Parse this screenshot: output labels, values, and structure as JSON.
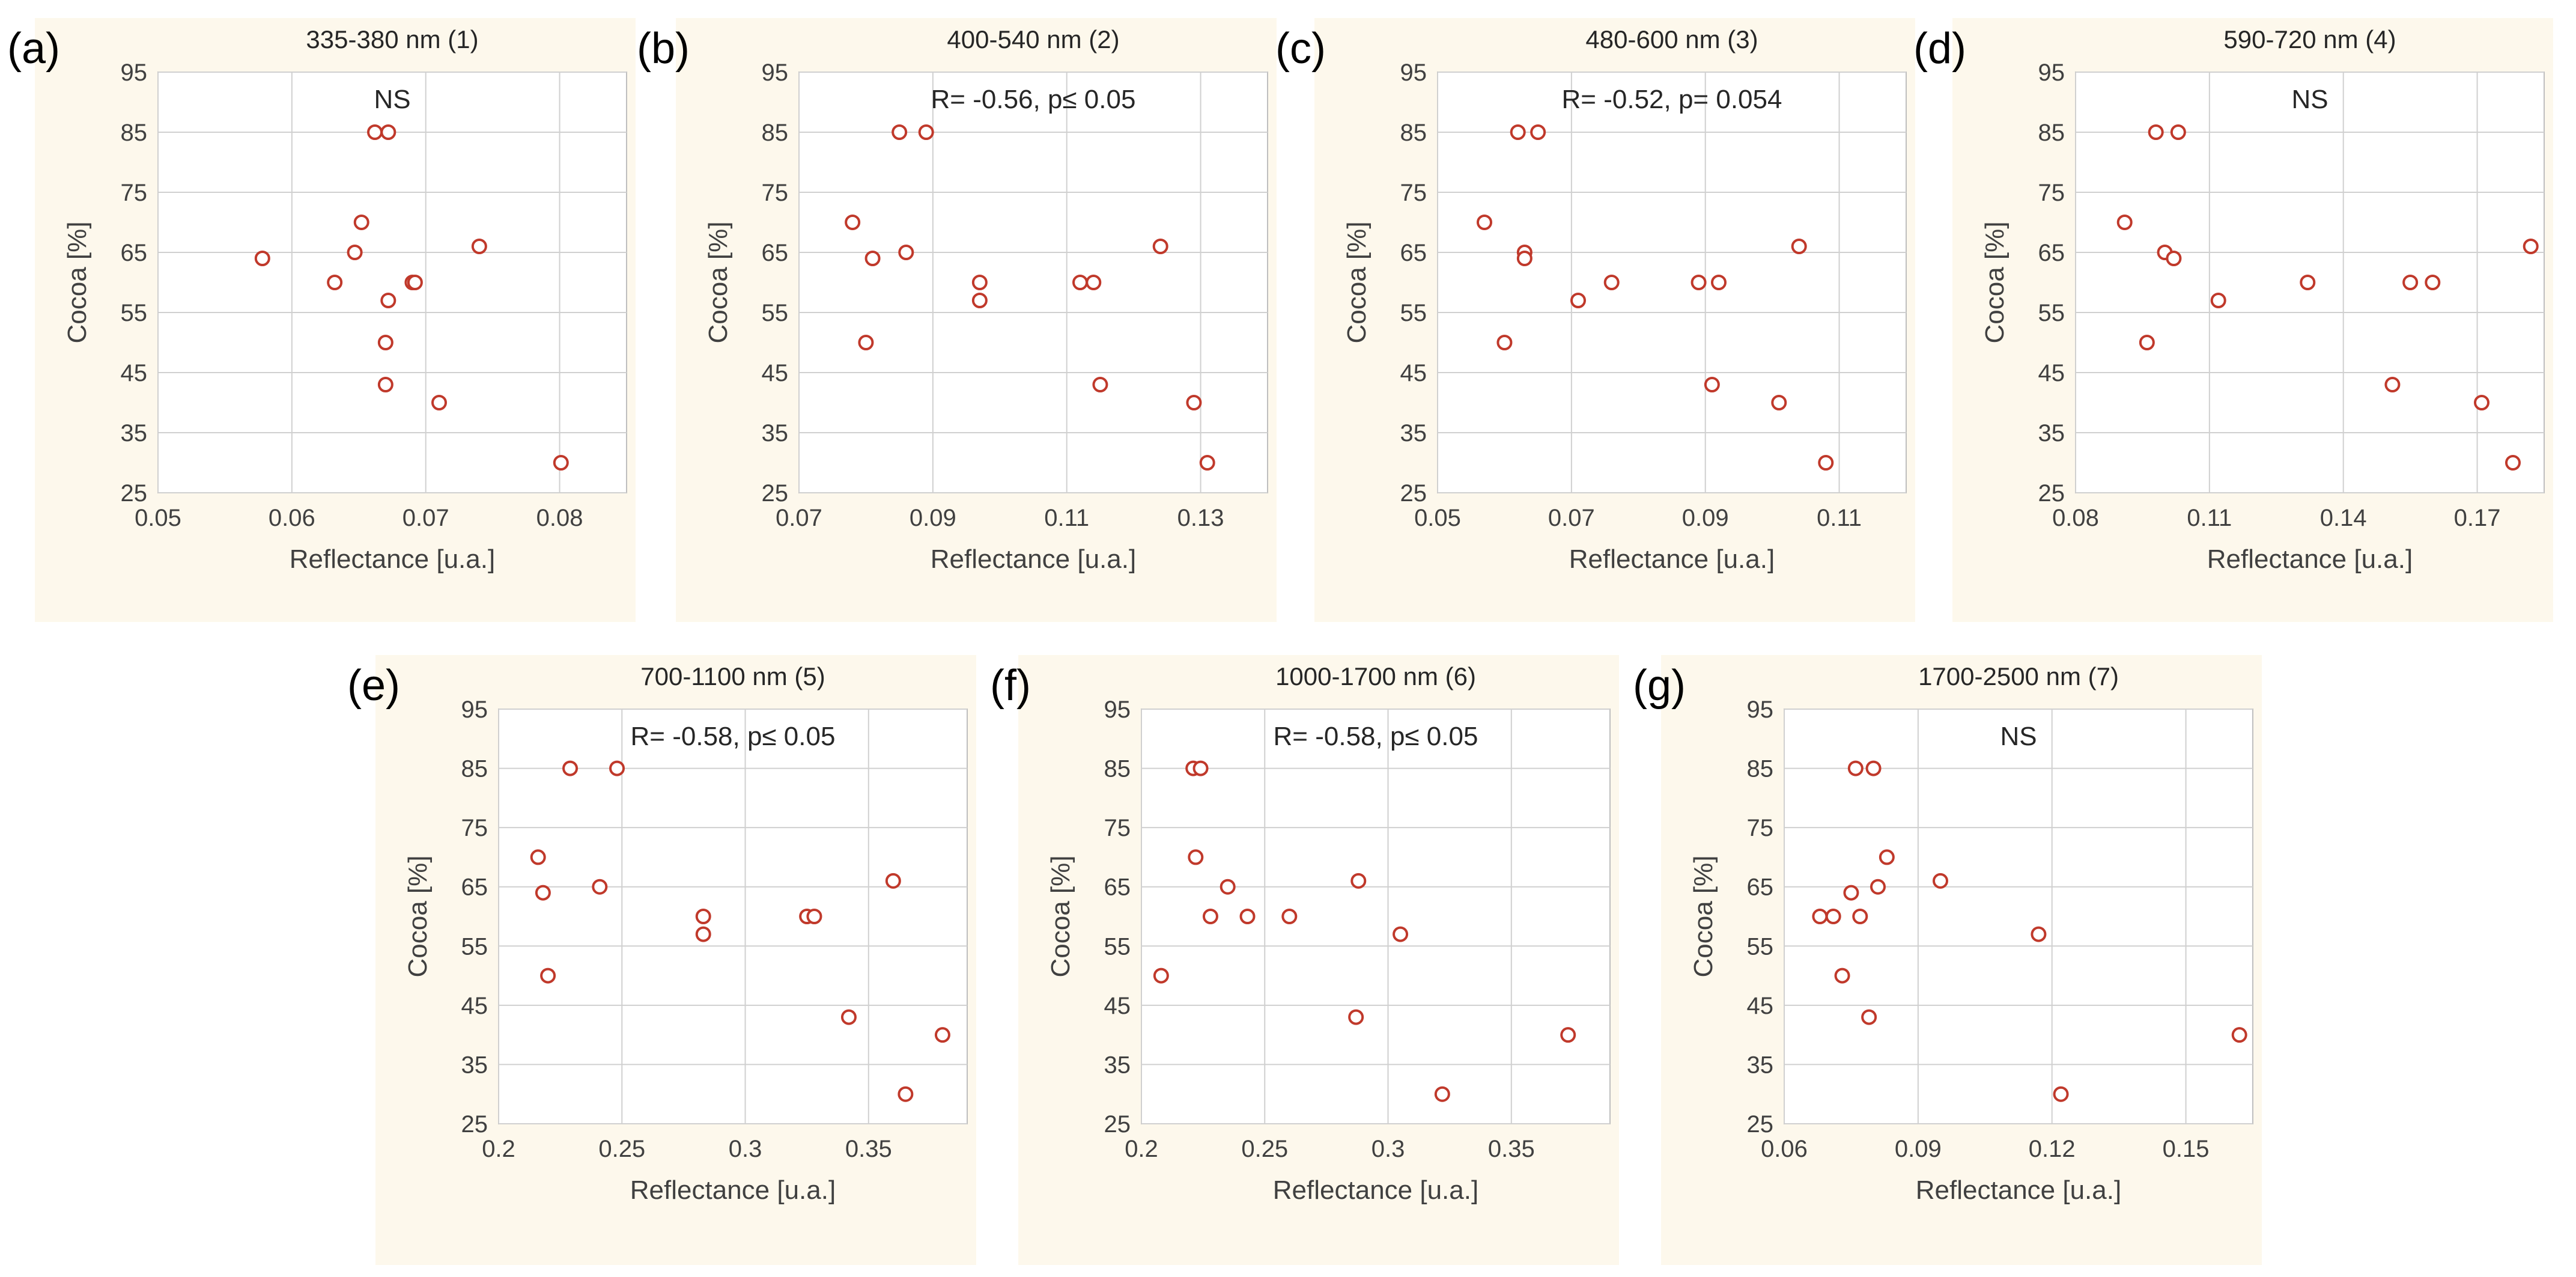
{
  "chart_data": [
    {
      "type": "scatter",
      "panel_label": "(a)",
      "title": "335-380 nm (1)",
      "annotation": "NS",
      "xlabel": "Reflectance [u.a.]",
      "ylabel": "Cocoa [%]",
      "xlim": [
        0.05,
        0.085
      ],
      "ylim": [
        25,
        95
      ],
      "xticks": [
        0.05,
        0.06,
        0.07,
        0.08
      ],
      "xtick_labels": [
        "0.05",
        "0.06",
        "0.07",
        "0.08"
      ],
      "yticks": [
        25,
        35,
        45,
        55,
        65,
        75,
        85,
        95
      ],
      "ytick_labels": [
        "25",
        "35",
        "45",
        "55",
        "65",
        "75",
        "85",
        "95"
      ],
      "grid": true,
      "points": [
        {
          "x": 0.0662,
          "y": 85
        },
        {
          "x": 0.0672,
          "y": 85
        },
        {
          "x": 0.0652,
          "y": 70
        },
        {
          "x": 0.0578,
          "y": 64
        },
        {
          "x": 0.0647,
          "y": 65
        },
        {
          "x": 0.074,
          "y": 66
        },
        {
          "x": 0.0632,
          "y": 60
        },
        {
          "x": 0.069,
          "y": 60
        },
        {
          "x": 0.0692,
          "y": 60
        },
        {
          "x": 0.0672,
          "y": 57
        },
        {
          "x": 0.067,
          "y": 50
        },
        {
          "x": 0.067,
          "y": 43
        },
        {
          "x": 0.071,
          "y": 40
        },
        {
          "x": 0.0801,
          "y": 30
        }
      ]
    },
    {
      "type": "scatter",
      "panel_label": "(b)",
      "title": "400-540 nm (2)",
      "annotation": "R= -0.56, p≤ 0.05",
      "xlabel": "Reflectance [u.a.]",
      "ylabel": "Cocoa [%]",
      "xlim": [
        0.07,
        0.14
      ],
      "ylim": [
        25,
        95
      ],
      "xticks": [
        0.07,
        0.09,
        0.11,
        0.13
      ],
      "xtick_labels": [
        "0.07",
        "0.09",
        "0.11",
        "0.13"
      ],
      "yticks": [
        25,
        35,
        45,
        55,
        65,
        75,
        85,
        95
      ],
      "ytick_labels": [
        "25",
        "35",
        "45",
        "55",
        "65",
        "75",
        "85",
        "95"
      ],
      "grid": true,
      "points": [
        {
          "x": 0.085,
          "y": 85
        },
        {
          "x": 0.089,
          "y": 85
        },
        {
          "x": 0.078,
          "y": 70
        },
        {
          "x": 0.081,
          "y": 64
        },
        {
          "x": 0.086,
          "y": 65
        },
        {
          "x": 0.124,
          "y": 66
        },
        {
          "x": 0.097,
          "y": 60
        },
        {
          "x": 0.097,
          "y": 57
        },
        {
          "x": 0.112,
          "y": 60
        },
        {
          "x": 0.114,
          "y": 60
        },
        {
          "x": 0.08,
          "y": 50
        },
        {
          "x": 0.115,
          "y": 43
        },
        {
          "x": 0.129,
          "y": 40
        },
        {
          "x": 0.131,
          "y": 30
        }
      ]
    },
    {
      "type": "scatter",
      "panel_label": "(c)",
      "title": "480-600 nm (3)",
      "annotation": "R= -0.52, p= 0.054",
      "xlabel": "Reflectance [u.a.]",
      "ylabel": "Cocoa [%]",
      "xlim": [
        0.05,
        0.12
      ],
      "ylim": [
        25,
        95
      ],
      "xticks": [
        0.05,
        0.07,
        0.09,
        0.11
      ],
      "xtick_labels": [
        "0.05",
        "0.07",
        "0.09",
        "0.11"
      ],
      "yticks": [
        25,
        35,
        45,
        55,
        65,
        75,
        85,
        95
      ],
      "ytick_labels": [
        "25",
        "35",
        "45",
        "55",
        "65",
        "75",
        "85",
        "95"
      ],
      "grid": true,
      "points": [
        {
          "x": 0.062,
          "y": 85
        },
        {
          "x": 0.065,
          "y": 85
        },
        {
          "x": 0.057,
          "y": 70
        },
        {
          "x": 0.063,
          "y": 65
        },
        {
          "x": 0.063,
          "y": 64
        },
        {
          "x": 0.104,
          "y": 66
        },
        {
          "x": 0.076,
          "y": 60
        },
        {
          "x": 0.089,
          "y": 60
        },
        {
          "x": 0.092,
          "y": 60
        },
        {
          "x": 0.071,
          "y": 57
        },
        {
          "x": 0.06,
          "y": 50
        },
        {
          "x": 0.091,
          "y": 43
        },
        {
          "x": 0.101,
          "y": 40
        },
        {
          "x": 0.108,
          "y": 30
        }
      ]
    },
    {
      "type": "scatter",
      "panel_label": "(d)",
      "title": "590-720 nm (4)",
      "annotation": "NS",
      "xlabel": "Reflectance [u.a.]",
      "ylabel": "Cocoa [%]",
      "xlim": [
        0.08,
        0.185
      ],
      "ylim": [
        25,
        95
      ],
      "xticks": [
        0.08,
        0.11,
        0.14,
        0.17
      ],
      "xtick_labels": [
        "0.08",
        "0.11",
        "0.14",
        "0.17"
      ],
      "yticks": [
        25,
        35,
        45,
        55,
        65,
        75,
        85,
        95
      ],
      "ytick_labels": [
        "25",
        "35",
        "45",
        "55",
        "65",
        "75",
        "85",
        "95"
      ],
      "grid": true,
      "points": [
        {
          "x": 0.098,
          "y": 85
        },
        {
          "x": 0.103,
          "y": 85
        },
        {
          "x": 0.091,
          "y": 70
        },
        {
          "x": 0.1,
          "y": 65
        },
        {
          "x": 0.102,
          "y": 64
        },
        {
          "x": 0.182,
          "y": 66
        },
        {
          "x": 0.132,
          "y": 60
        },
        {
          "x": 0.155,
          "y": 60
        },
        {
          "x": 0.16,
          "y": 60
        },
        {
          "x": 0.112,
          "y": 57
        },
        {
          "x": 0.096,
          "y": 50
        },
        {
          "x": 0.151,
          "y": 43
        },
        {
          "x": 0.171,
          "y": 40
        },
        {
          "x": 0.178,
          "y": 30
        }
      ]
    },
    {
      "type": "scatter",
      "panel_label": "(e)",
      "title": "700-1100 nm (5)",
      "annotation": "R= -0.58, p≤ 0.05",
      "xlabel": "Reflectance [u.a.]",
      "ylabel": "Cocoa [%]",
      "xlim": [
        0.2,
        0.39
      ],
      "ylim": [
        25,
        95
      ],
      "xticks": [
        0.2,
        0.25,
        0.3,
        0.35
      ],
      "xtick_labels": [
        "0.2",
        "0.25",
        "0.3",
        "0.35"
      ],
      "yticks": [
        25,
        35,
        45,
        55,
        65,
        75,
        85,
        95
      ],
      "ytick_labels": [
        "25",
        "35",
        "45",
        "55",
        "65",
        "75",
        "85",
        "95"
      ],
      "grid": true,
      "points": [
        {
          "x": 0.229,
          "y": 85
        },
        {
          "x": 0.248,
          "y": 85
        },
        {
          "x": 0.216,
          "y": 70
        },
        {
          "x": 0.218,
          "y": 64
        },
        {
          "x": 0.241,
          "y": 65
        },
        {
          "x": 0.36,
          "y": 66
        },
        {
          "x": 0.283,
          "y": 60
        },
        {
          "x": 0.283,
          "y": 57
        },
        {
          "x": 0.325,
          "y": 60
        },
        {
          "x": 0.328,
          "y": 60
        },
        {
          "x": 0.22,
          "y": 50
        },
        {
          "x": 0.342,
          "y": 43
        },
        {
          "x": 0.38,
          "y": 40
        },
        {
          "x": 0.365,
          "y": 30
        }
      ]
    },
    {
      "type": "scatter",
      "panel_label": "(f)",
      "title": "1000-1700 nm (6)",
      "annotation": "R= -0.58, p≤ 0.05",
      "xlabel": "Reflectance [u.a.]",
      "ylabel": "Cocoa [%]",
      "xlim": [
        0.2,
        0.39
      ],
      "ylim": [
        25,
        95
      ],
      "xticks": [
        0.2,
        0.25,
        0.3,
        0.35
      ],
      "xtick_labels": [
        "0.2",
        "0.25",
        "0.3",
        "0.35"
      ],
      "yticks": [
        25,
        35,
        45,
        55,
        65,
        75,
        85,
        95
      ],
      "ytick_labels": [
        "25",
        "35",
        "45",
        "55",
        "65",
        "75",
        "85",
        "95"
      ],
      "grid": true,
      "points": [
        {
          "x": 0.221,
          "y": 85
        },
        {
          "x": 0.224,
          "y": 85
        },
        {
          "x": 0.222,
          "y": 70
        },
        {
          "x": 0.235,
          "y": 65
        },
        {
          "x": 0.288,
          "y": 66
        },
        {
          "x": 0.228,
          "y": 60
        },
        {
          "x": 0.243,
          "y": 60
        },
        {
          "x": 0.26,
          "y": 60
        },
        {
          "x": 0.305,
          "y": 57
        },
        {
          "x": 0.208,
          "y": 50
        },
        {
          "x": 0.287,
          "y": 43
        },
        {
          "x": 0.373,
          "y": 40
        },
        {
          "x": 0.322,
          "y": 30
        }
      ]
    },
    {
      "type": "scatter",
      "panel_label": "(g)",
      "title": "1700-2500 nm (7)",
      "annotation": "NS",
      "xlabel": "Reflectance [u.a.]",
      "ylabel": "Cocoa [%]",
      "xlim": [
        0.06,
        0.165
      ],
      "ylim": [
        25,
        95
      ],
      "xticks": [
        0.06,
        0.09,
        0.12,
        0.15
      ],
      "xtick_labels": [
        "0.06",
        "0.09",
        "0.12",
        "0.15"
      ],
      "yticks": [
        25,
        35,
        45,
        55,
        65,
        75,
        85,
        95
      ],
      "ytick_labels": [
        "25",
        "35",
        "45",
        "55",
        "65",
        "75",
        "85",
        "95"
      ],
      "grid": true,
      "points": [
        {
          "x": 0.076,
          "y": 85
        },
        {
          "x": 0.08,
          "y": 85
        },
        {
          "x": 0.083,
          "y": 70
        },
        {
          "x": 0.075,
          "y": 64
        },
        {
          "x": 0.081,
          "y": 65
        },
        {
          "x": 0.095,
          "y": 66
        },
        {
          "x": 0.068,
          "y": 60
        },
        {
          "x": 0.071,
          "y": 60
        },
        {
          "x": 0.077,
          "y": 60
        },
        {
          "x": 0.117,
          "y": 57
        },
        {
          "x": 0.073,
          "y": 50
        },
        {
          "x": 0.079,
          "y": 43
        },
        {
          "x": 0.162,
          "y": 40
        },
        {
          "x": 0.122,
          "y": 30
        }
      ]
    }
  ]
}
